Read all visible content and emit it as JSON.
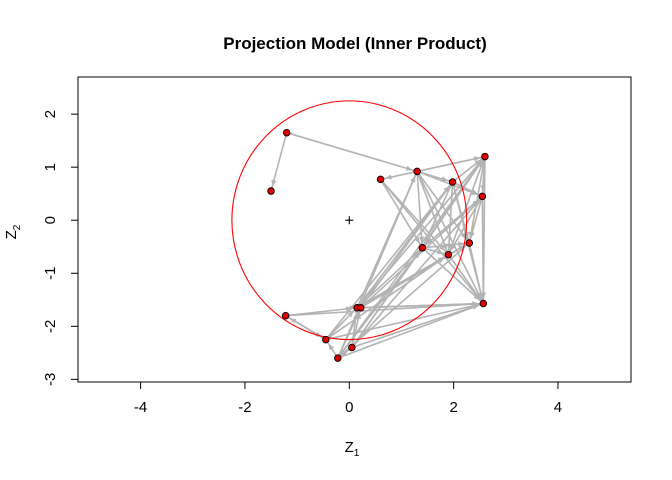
{
  "chart_data": {
    "type": "scatter",
    "title": "Projection Model (Inner Product)",
    "xlabel": "Z",
    "xlabel_sub": "1",
    "ylabel": "Z",
    "ylabel_sub": "2",
    "xlim": [
      -5.2,
      5.4
    ],
    "ylim": [
      -3.05,
      2.7
    ],
    "xticks": [
      -4,
      -2,
      0,
      2,
      4
    ],
    "yticks": [
      -3,
      -2,
      -1,
      0,
      1,
      2
    ],
    "grid": false,
    "legend": "none",
    "colors": {
      "point_fill": "#e00000",
      "point_stroke": "#000000",
      "edge": "#b3b3b3",
      "circle": "#ff0000",
      "origin": "#000000",
      "frame": "#000000"
    },
    "circle": {
      "center": [
        0,
        0
      ],
      "radius": 2.25
    },
    "origin_marker": [
      0,
      0
    ],
    "points": [
      {
        "x": -1.2,
        "y": 1.65
      },
      {
        "x": -1.5,
        "y": 0.55
      },
      {
        "x": 0.6,
        "y": 0.77
      },
      {
        "x": 1.3,
        "y": 0.92
      },
      {
        "x": 1.98,
        "y": 0.72
      },
      {
        "x": 2.6,
        "y": 1.2
      },
      {
        "x": 2.55,
        "y": 0.45
      },
      {
        "x": 1.4,
        "y": -0.52
      },
      {
        "x": 1.9,
        "y": -0.65
      },
      {
        "x": 2.3,
        "y": -0.43
      },
      {
        "x": 2.57,
        "y": -1.57
      },
      {
        "x": 0.15,
        "y": -1.65
      },
      {
        "x": 0.22,
        "y": -1.65
      },
      {
        "x": -1.22,
        "y": -1.8
      },
      {
        "x": -0.45,
        "y": -2.25
      },
      {
        "x": 0.05,
        "y": -2.4
      },
      {
        "x": -0.22,
        "y": -2.6
      }
    ],
    "edges": [
      [
        16,
        14
      ],
      [
        14,
        13
      ],
      [
        13,
        11
      ],
      [
        16,
        15
      ],
      [
        15,
        11
      ],
      [
        11,
        12
      ],
      [
        14,
        11
      ],
      [
        16,
        12
      ],
      [
        15,
        12
      ],
      [
        13,
        14
      ],
      [
        16,
        10
      ],
      [
        14,
        10
      ],
      [
        15,
        10
      ],
      [
        11,
        10
      ],
      [
        12,
        10
      ],
      [
        11,
        8
      ],
      [
        11,
        7
      ],
      [
        12,
        9
      ],
      [
        11,
        9
      ],
      [
        12,
        6
      ],
      [
        11,
        5
      ],
      [
        11,
        4
      ],
      [
        11,
        3
      ],
      [
        12,
        4
      ],
      [
        16,
        7
      ],
      [
        14,
        8
      ],
      [
        15,
        6
      ],
      [
        16,
        5
      ],
      [
        14,
        4
      ],
      [
        16,
        3
      ],
      [
        16,
        9
      ],
      [
        15,
        7
      ],
      [
        13,
        10
      ],
      [
        15,
        5
      ],
      [
        0,
        1
      ],
      [
        0,
        3
      ],
      [
        3,
        2
      ],
      [
        3,
        4
      ],
      [
        3,
        5
      ],
      [
        3,
        6
      ],
      [
        3,
        7
      ],
      [
        3,
        8
      ],
      [
        3,
        9
      ],
      [
        3,
        10
      ],
      [
        4,
        5
      ],
      [
        4,
        6
      ],
      [
        4,
        7
      ],
      [
        4,
        8
      ],
      [
        4,
        9
      ],
      [
        4,
        10
      ],
      [
        5,
        6
      ],
      [
        5,
        7
      ],
      [
        5,
        8
      ],
      [
        5,
        9
      ],
      [
        5,
        10
      ],
      [
        6,
        7
      ],
      [
        6,
        8
      ],
      [
        6,
        9
      ],
      [
        6,
        10
      ],
      [
        7,
        8
      ],
      [
        7,
        9
      ],
      [
        7,
        10
      ],
      [
        8,
        9
      ],
      [
        8,
        10
      ],
      [
        9,
        10
      ],
      [
        2,
        7
      ],
      [
        2,
        8
      ],
      [
        2,
        10
      ]
    ]
  }
}
